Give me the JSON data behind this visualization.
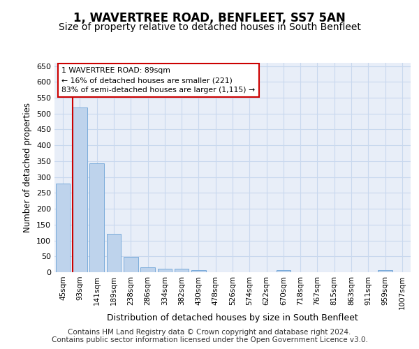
{
  "title": "1, WAVERTREE ROAD, BENFLEET, SS7 5AN",
  "subtitle": "Size of property relative to detached houses in South Benfleet",
  "xlabel": "Distribution of detached houses by size in South Benfleet",
  "ylabel": "Number of detached properties",
  "bar_color": "#bed3ec",
  "bar_edge_color": "#7aabda",
  "vline_color": "#cc0000",
  "vline_x_index": 1,
  "annotation_text": "1 WAVERTREE ROAD: 89sqm\n← 16% of detached houses are smaller (221)\n83% of semi-detached houses are larger (1,115) →",
  "annotation_box_color": "#cc0000",
  "categories": [
    "45sqm",
    "93sqm",
    "141sqm",
    "189sqm",
    "238sqm",
    "286sqm",
    "334sqm",
    "382sqm",
    "430sqm",
    "478sqm",
    "526sqm",
    "574sqm",
    "622sqm",
    "670sqm",
    "718sqm",
    "767sqm",
    "815sqm",
    "863sqm",
    "911sqm",
    "959sqm",
    "1007sqm"
  ],
  "values": [
    280,
    520,
    343,
    120,
    48,
    16,
    11,
    10,
    7,
    0,
    0,
    0,
    0,
    7,
    0,
    0,
    0,
    0,
    0,
    7,
    0
  ],
  "ylim": [
    0,
    660
  ],
  "yticks": [
    0,
    50,
    100,
    150,
    200,
    250,
    300,
    350,
    400,
    450,
    500,
    550,
    600,
    650
  ],
  "grid_color": "#c8d8ee",
  "background_color": "#e8eef8",
  "footer_text": "Contains HM Land Registry data © Crown copyright and database right 2024.\nContains public sector information licensed under the Open Government Licence v3.0.",
  "title_fontsize": 12,
  "subtitle_fontsize": 10,
  "footer_fontsize": 7.5
}
